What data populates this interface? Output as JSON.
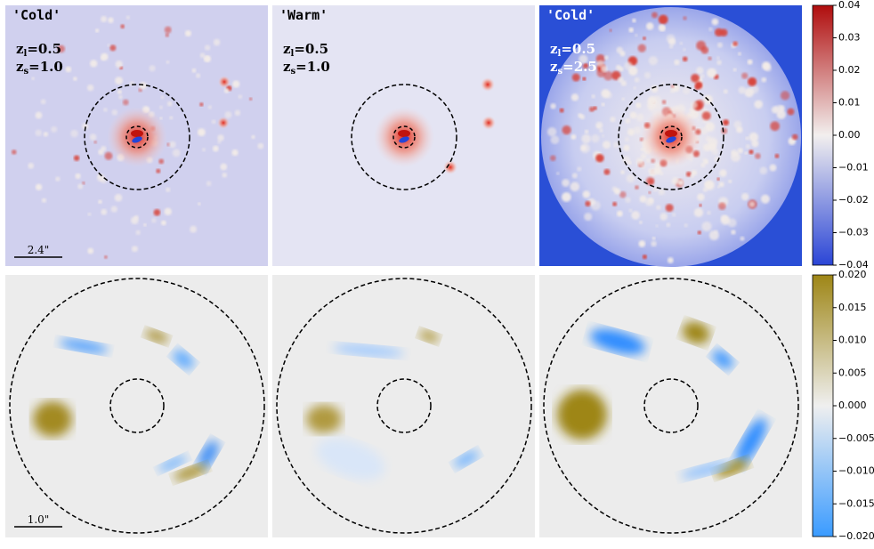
{
  "panels": [
    {
      "model": "'Cold'",
      "z_lens": {
        "symbol": "z",
        "subscript": "l",
        "value": "=0.5"
      },
      "z_source": {
        "symbol": "z",
        "subscript": "s",
        "value": "=1.0"
      }
    },
    {
      "model": "'Warm'",
      "z_lens": {
        "symbol": "z",
        "subscript": "l",
        "value": "=0.5"
      },
      "z_source": {
        "symbol": "z",
        "subscript": "s",
        "value": "=1.0"
      }
    },
    {
      "model": "'Cold'",
      "z_lens": {
        "symbol": "z",
        "subscript": "l",
        "value": "=0.5"
      },
      "z_source": {
        "symbol": "z",
        "subscript": "s",
        "value": "=2.5"
      }
    }
  ],
  "scale_bars": [
    "2.4\"",
    "1.0\""
  ],
  "colorbars": [
    {
      "lim": [
        -0.04,
        0.04
      ],
      "ticks": [
        {
          "value": -0.04,
          "label": "−0.04"
        },
        {
          "value": -0.03,
          "label": "−0.03"
        },
        {
          "value": -0.02,
          "label": "−0.02"
        },
        {
          "value": -0.01,
          "label": "−0.01"
        },
        {
          "value": 0,
          "label": "0.00"
        },
        {
          "value": 0.01,
          "label": "0.01"
        },
        {
          "value": 0.02,
          "label": "0.02"
        },
        {
          "value": 0.03,
          "label": "0.03"
        },
        {
          "value": 0.04,
          "label": "0.04"
        }
      ]
    },
    {
      "lim": [
        -0.02,
        0.02
      ],
      "ticks": [
        {
          "value": -0.02,
          "label": "−0.020"
        },
        {
          "value": -0.015,
          "label": "−0.015"
        },
        {
          "value": -0.01,
          "label": "−0.010"
        },
        {
          "value": -0.005,
          "label": "−0.005"
        },
        {
          "value": 0,
          "label": "0.000"
        },
        {
          "value": 0.005,
          "label": "0.005"
        },
        {
          "value": 0.01,
          "label": "0.010"
        },
        {
          "value": 0.015,
          "label": "0.015"
        },
        {
          "value": 0.02,
          "label": "0.020"
        }
      ]
    }
  ]
}
